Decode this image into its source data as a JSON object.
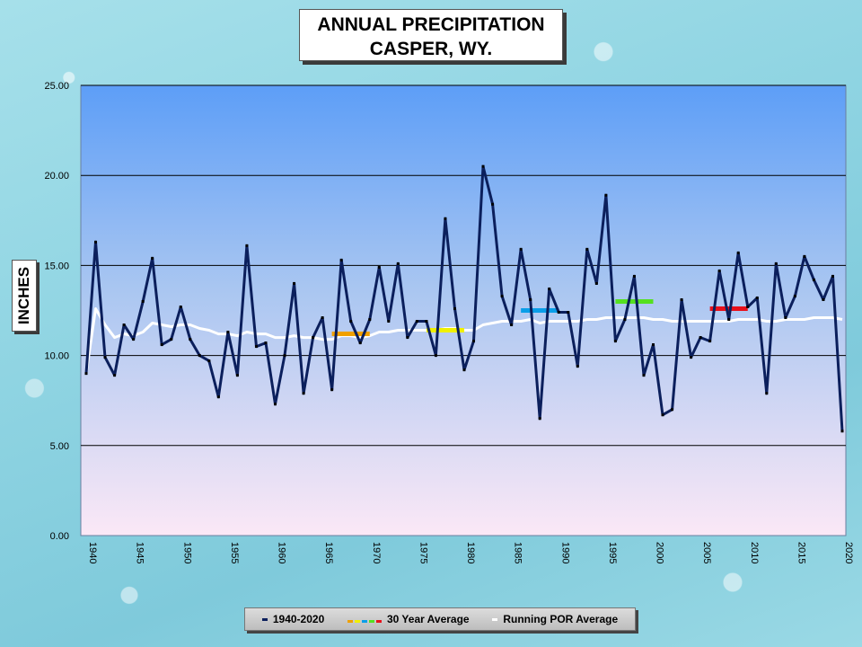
{
  "title_line1": "ANNUAL PRECIPITATION",
  "title_line2": "CASPER, WY.",
  "chart_data": {
    "type": "line",
    "title": "ANNUAL PRECIPITATION CASPER, WY.",
    "ylabel": "INCHES",
    "xlabel": "",
    "ylim": [
      0,
      25
    ],
    "xlim": [
      1940,
      2020
    ],
    "y_ticks": [
      "0.00",
      "5.00",
      "10.00",
      "15.00",
      "20.00",
      "25.00"
    ],
    "x_ticks": [
      "1940",
      "1945",
      "1950",
      "1955",
      "1960",
      "1965",
      "1970",
      "1975",
      "1980",
      "1985",
      "1990",
      "1995",
      "2000",
      "2005",
      "2010",
      "2015",
      "2020"
    ],
    "grid": true,
    "legend_position": "bottom",
    "series": [
      {
        "name": "1940-2020",
        "color": "#0b1f5c",
        "x": [
          1940,
          1941,
          1942,
          1943,
          1944,
          1945,
          1946,
          1947,
          1948,
          1949,
          1950,
          1951,
          1952,
          1953,
          1954,
          1955,
          1956,
          1957,
          1958,
          1959,
          1960,
          1961,
          1962,
          1963,
          1964,
          1965,
          1966,
          1967,
          1968,
          1969,
          1970,
          1971,
          1972,
          1973,
          1974,
          1975,
          1976,
          1977,
          1978,
          1979,
          1980,
          1981,
          1982,
          1983,
          1984,
          1985,
          1986,
          1987,
          1988,
          1989,
          1990,
          1991,
          1992,
          1993,
          1994,
          1995,
          1996,
          1997,
          1998,
          1999,
          2000,
          2001,
          2002,
          2003,
          2004,
          2005,
          2006,
          2007,
          2008,
          2009,
          2010,
          2011,
          2012,
          2013,
          2014,
          2015,
          2016,
          2017,
          2018,
          2019,
          2020
        ],
        "values": [
          9.0,
          16.3,
          9.9,
          8.9,
          11.7,
          10.9,
          13.0,
          15.4,
          10.6,
          10.9,
          12.7,
          10.9,
          10.0,
          9.7,
          7.7,
          11.3,
          8.9,
          16.1,
          10.5,
          10.7,
          7.3,
          10.0,
          14.0,
          7.9,
          11.0,
          12.1,
          8.1,
          15.3,
          11.9,
          10.7,
          12.0,
          14.9,
          11.9,
          15.1,
          11.0,
          11.9,
          11.9,
          10.0,
          17.6,
          12.6,
          9.2,
          10.8,
          20.5,
          18.4,
          13.3,
          11.7,
          15.9,
          13.1,
          6.5,
          13.7,
          12.4,
          12.4,
          9.4,
          15.9,
          14.0,
          18.9,
          10.8,
          12.0,
          14.4,
          8.9,
          10.6,
          6.7,
          7.0,
          13.1,
          9.9,
          11.0,
          10.8,
          14.7,
          12.0,
          15.7,
          12.7,
          13.2,
          7.9,
          15.1,
          12.1,
          13.3,
          15.5,
          14.2,
          13.1,
          14.4,
          5.8
        ]
      },
      {
        "name": "30 Year Average",
        "segments": [
          {
            "x": [
              1966,
              1970
            ],
            "y": 11.2,
            "color": "#f0a000"
          },
          {
            "x": [
              1976,
              1980
            ],
            "y": 11.4,
            "color": "#f0f000"
          },
          {
            "x": [
              1986,
              1990
            ],
            "y": 12.5,
            "color": "#0a9ee8"
          },
          {
            "x": [
              1996,
              2000
            ],
            "y": 13.0,
            "color": "#55e020"
          },
          {
            "x": [
              2006,
              2010
            ],
            "y": 12.6,
            "color": "#e8101a"
          }
        ],
        "legend_colors": [
          "#f0a000",
          "#f0f000",
          "#0a9ee8",
          "#55e020",
          "#e8101a"
        ]
      },
      {
        "name": "Running POR Average",
        "color": "#ffffff",
        "x": [
          1940,
          1941,
          1942,
          1943,
          1944,
          1945,
          1946,
          1947,
          1948,
          1949,
          1950,
          1951,
          1952,
          1953,
          1954,
          1955,
          1956,
          1957,
          1958,
          1959,
          1960,
          1961,
          1962,
          1963,
          1964,
          1965,
          1966,
          1967,
          1968,
          1969,
          1970,
          1971,
          1972,
          1973,
          1974,
          1975,
          1976,
          1977,
          1978,
          1979,
          1980,
          1981,
          1982,
          1983,
          1984,
          1985,
          1986,
          1987,
          1988,
          1989,
          1990,
          1991,
          1992,
          1993,
          1994,
          1995,
          1996,
          1997,
          1998,
          1999,
          2000,
          2001,
          2002,
          2003,
          2004,
          2005,
          2006,
          2007,
          2008,
          2009,
          2010,
          2011,
          2012,
          2013,
          2014,
          2015,
          2016,
          2017,
          2018,
          2019,
          2020
        ],
        "values": [
          9.0,
          12.6,
          11.7,
          11.0,
          11.2,
          11.1,
          11.3,
          11.8,
          11.7,
          11.6,
          11.7,
          11.7,
          11.5,
          11.4,
          11.2,
          11.2,
          11.1,
          11.3,
          11.2,
          11.2,
          11.0,
          11.0,
          11.1,
          11.0,
          11.0,
          10.9,
          10.9,
          11.1,
          11.1,
          11.0,
          11.1,
          11.3,
          11.3,
          11.4,
          11.4,
          11.4,
          11.4,
          11.4,
          11.5,
          11.5,
          11.4,
          11.4,
          11.7,
          11.8,
          11.9,
          11.9,
          11.9,
          12.0,
          11.8,
          11.9,
          11.9,
          11.9,
          11.9,
          12.0,
          12.0,
          12.1,
          12.1,
          12.1,
          12.1,
          12.1,
          12.0,
          12.0,
          11.9,
          11.9,
          11.9,
          11.9,
          11.9,
          11.9,
          11.9,
          12.0,
          12.0,
          12.0,
          11.9,
          11.9,
          12.0,
          12.0,
          12.0,
          12.1,
          12.1,
          12.1,
          12.0
        ]
      }
    ]
  }
}
